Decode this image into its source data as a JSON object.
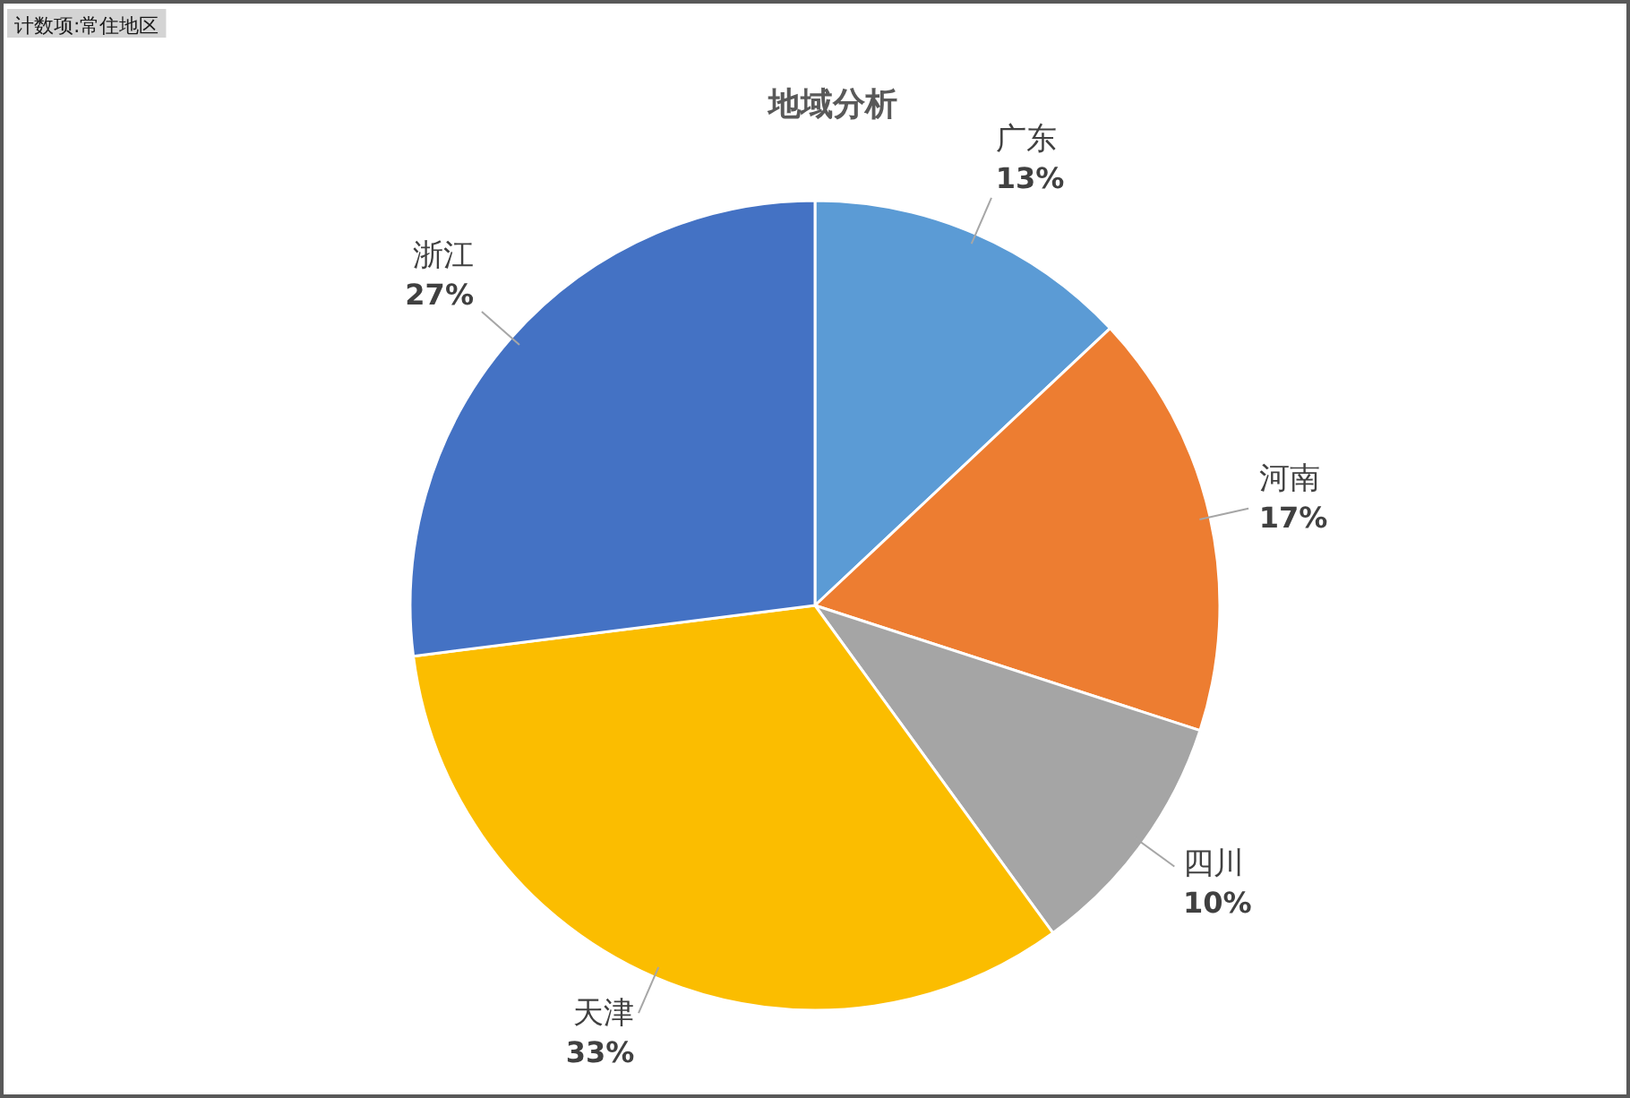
{
  "chart_data": {
    "type": "pie",
    "title": "地域分析",
    "categories": [
      "广东",
      "河南",
      "四川",
      "天津",
      "浙江"
    ],
    "values": [
      13,
      17,
      10,
      33,
      27
    ],
    "colors": [
      "#5b9bd5",
      "#ed7d31",
      "#a5a5a5",
      "#fbbd00",
      "#4472c4"
    ],
    "value_labels": [
      "13%",
      "17%",
      "10%",
      "33%",
      "27%"
    ],
    "annotations": [
      "计数项:常住地区"
    ]
  }
}
